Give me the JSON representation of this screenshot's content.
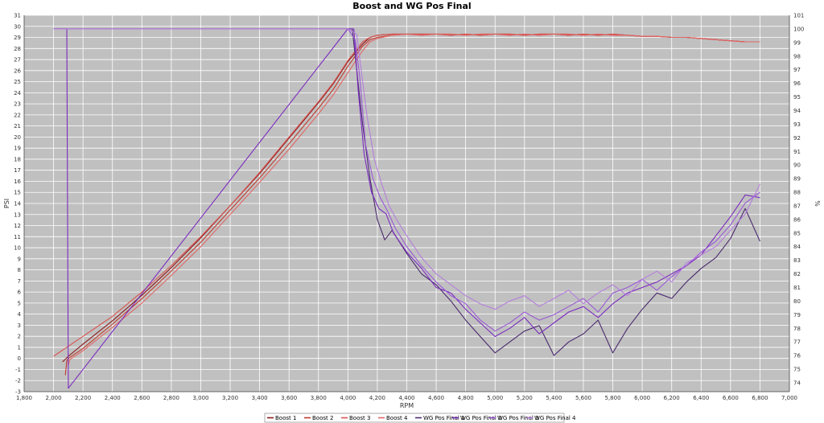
{
  "chart_data": {
    "type": "line",
    "title": "Boost and WG Pos Final",
    "xlabel": "RPM",
    "ylabel": "PSI",
    "y2label": "%",
    "xlim": [
      1800,
      7000
    ],
    "ylim": [
      -3,
      31
    ],
    "y2lim": [
      73.35,
      101
    ],
    "x_ticks": [
      "1,800",
      "2,000",
      "2,200",
      "2,400",
      "2,600",
      "2,800",
      "3,000",
      "3,200",
      "3,400",
      "3,600",
      "3,800",
      "4,000",
      "4,200",
      "4,400",
      "4,600",
      "4,800",
      "5,000",
      "5,200",
      "5,400",
      "5,600",
      "5,800",
      "6,000",
      "6,200",
      "6,400",
      "6,600",
      "6,800",
      "7,000"
    ],
    "y_ticks": [
      "-3",
      "-2",
      "-1",
      "0",
      "1",
      "2",
      "3",
      "4",
      "5",
      "6",
      "7",
      "8",
      "9",
      "10",
      "11",
      "12",
      "13",
      "14",
      "15",
      "16",
      "17",
      "18",
      "19",
      "20",
      "21",
      "22",
      "23",
      "24",
      "25",
      "26",
      "27",
      "28",
      "29",
      "30",
      "31"
    ],
    "y2_ticks": [
      "74",
      "75",
      "76",
      "77",
      "78",
      "79",
      "80",
      "81",
      "82",
      "83",
      "84",
      "85",
      "86",
      "87",
      "88",
      "89",
      "90",
      "91",
      "92",
      "93",
      "94",
      "95",
      "96",
      "97",
      "98",
      "99",
      "100",
      "101"
    ],
    "grid": true,
    "legend_position": "bottom",
    "series": [
      {
        "name": "Boost 1",
        "axis": "left",
        "color": "#8b1a1a",
        "x": [
          2060,
          2070,
          2100,
          2200,
          2400,
          2600,
          2800,
          3000,
          3200,
          3400,
          3600,
          3800,
          3900,
          4000,
          4100,
          4150,
          4200,
          4300,
          4400,
          4500,
          4600,
          4700,
          4800,
          4900,
          5000,
          5100,
          5200,
          5300,
          5400,
          5500,
          5600,
          5700,
          5800,
          5900,
          6000,
          6100,
          6200,
          6300,
          6400,
          6500,
          6600,
          6700,
          6800
        ],
        "values": [
          -0.3,
          -0.2,
          0.2,
          1.3,
          3.4,
          5.7,
          8.2,
          10.9,
          13.8,
          16.7,
          19.9,
          23.1,
          24.8,
          26.8,
          28.4,
          29.0,
          29.2,
          29.3,
          29.3,
          29.3,
          29.3,
          29.2,
          29.3,
          29.2,
          29.3,
          29.3,
          29.2,
          29.3,
          29.3,
          29.2,
          29.3,
          29.2,
          29.3,
          29.2,
          29.1,
          29.1,
          29.0,
          29.0,
          28.9,
          28.8,
          28.7,
          28.6,
          28.6
        ]
      },
      {
        "name": "Boost 2",
        "axis": "left",
        "color": "#c0392b",
        "x": [
          2080,
          2090,
          2100,
          2200,
          2400,
          2600,
          2800,
          3000,
          3200,
          3400,
          3600,
          3800,
          3900,
          4000,
          4100,
          4150,
          4200,
          4300,
          4400,
          4500,
          4600,
          4700,
          4800,
          4900,
          5000,
          5100,
          5200,
          5300,
          5400,
          5500,
          5600,
          5700,
          5800,
          5900,
          6000,
          6100,
          6200,
          6300,
          6400,
          6500,
          6600,
          6700,
          6800
        ],
        "values": [
          -1.5,
          -0.2,
          0.0,
          0.9,
          3.1,
          5.4,
          7.9,
          10.5,
          13.4,
          16.3,
          19.4,
          22.6,
          24.3,
          26.4,
          28.2,
          28.8,
          29.0,
          29.2,
          29.3,
          29.2,
          29.3,
          29.3,
          29.2,
          29.3,
          29.3,
          29.2,
          29.3,
          29.2,
          29.3,
          29.3,
          29.2,
          29.3,
          29.2,
          29.2,
          29.1,
          29.1,
          29.0,
          29.0,
          28.9,
          28.8,
          28.7,
          28.6,
          28.6
        ]
      },
      {
        "name": "Boost 3",
        "axis": "left",
        "color": "#d9534f",
        "x": [
          2000,
          2100,
          2200,
          2400,
          2600,
          2800,
          3000,
          3200,
          3400,
          3600,
          3800,
          3900,
          4000,
          4100,
          4150,
          4200,
          4300,
          4400,
          4500,
          4600,
          4700,
          4800,
          4900,
          5000,
          5100,
          5200,
          5300,
          5400,
          5500,
          5600,
          5700,
          5800,
          5900,
          6000,
          6100,
          6200,
          6300,
          6400,
          6500,
          6600,
          6700,
          6800
        ],
        "values": [
          0.2,
          1.1,
          2.0,
          3.8,
          6.0,
          8.4,
          11.0,
          13.8,
          16.8,
          20.0,
          23.2,
          24.9,
          26.9,
          28.6,
          29.0,
          29.2,
          29.3,
          29.3,
          29.3,
          29.3,
          29.2,
          29.3,
          29.2,
          29.3,
          29.3,
          29.2,
          29.3,
          29.3,
          29.2,
          29.3,
          29.2,
          29.3,
          29.2,
          29.1,
          29.1,
          29.0,
          29.0,
          28.9,
          28.8,
          28.7,
          28.6,
          28.6
        ]
      },
      {
        "name": "Boost 4",
        "axis": "left",
        "color": "#e06666",
        "x": [
          2100,
          2110,
          2200,
          2400,
          2600,
          2800,
          3000,
          3200,
          3400,
          3600,
          3800,
          3900,
          4000,
          4100,
          4150,
          4200,
          4300,
          4400,
          4500,
          4600,
          4700,
          4800,
          4900,
          5000,
          5100,
          5200,
          5300,
          5400,
          5500,
          5600,
          5700,
          5800,
          5900,
          6000,
          6100,
          6200,
          6300,
          6400,
          6500,
          6600,
          6700,
          6800
        ],
        "values": [
          -0.6,
          -0.1,
          0.7,
          2.8,
          5.0,
          7.5,
          10.1,
          13.0,
          15.9,
          18.9,
          22.1,
          23.8,
          25.8,
          27.8,
          28.6,
          28.9,
          29.2,
          29.3,
          29.2,
          29.3,
          29.3,
          29.2,
          29.3,
          29.3,
          29.2,
          29.3,
          29.2,
          29.3,
          29.3,
          29.2,
          29.3,
          29.2,
          29.2,
          29.1,
          29.1,
          29.0,
          29.0,
          28.9,
          28.8,
          28.7,
          28.6,
          28.6
        ]
      },
      {
        "name": "WG Pos Final 1",
        "axis": "right",
        "color": "#4a2a6e",
        "x": [
          2000,
          2100,
          4000,
          4030,
          4060,
          4100,
          4150,
          4200,
          4250,
          4300,
          4400,
          4500,
          4600,
          4700,
          4800,
          4900,
          5000,
          5100,
          5200,
          5300,
          5400,
          5500,
          5600,
          5700,
          5800,
          5900,
          6000,
          6100,
          6200,
          6300,
          6400,
          6500,
          6600,
          6700,
          6800
        ],
        "values": [
          100,
          100,
          100,
          100,
          97.0,
          93.0,
          89.0,
          86.0,
          84.5,
          85.2,
          83.5,
          82.0,
          81.2,
          80.0,
          78.6,
          77.4,
          76.2,
          77.0,
          77.8,
          78.2,
          76.0,
          77.0,
          77.6,
          78.6,
          76.2,
          78.0,
          79.4,
          80.6,
          80.2,
          81.4,
          82.4,
          83.2,
          84.6,
          86.8,
          84.4
        ]
      },
      {
        "name": "WG Pos Final 2",
        "axis": "right",
        "color": "#7b2cbf",
        "x": [
          2000,
          2090,
          2100,
          4000,
          4040,
          4070,
          4110,
          4160,
          4210,
          4260,
          4310,
          4400,
          4500,
          4600,
          4700,
          4800,
          4900,
          5000,
          5100,
          5200,
          5300,
          5400,
          5500,
          5600,
          5700,
          5800,
          5900,
          6000,
          6100,
          6200,
          6300,
          6400,
          6500,
          6600,
          6700,
          6800
        ],
        "values": [
          100,
          100,
          73.6,
          100,
          100,
          95.5,
          90.8,
          88.0,
          86.8,
          86.4,
          85.0,
          83.6,
          82.4,
          81.0,
          80.6,
          79.4,
          78.4,
          77.4,
          78.0,
          78.8,
          77.6,
          78.4,
          79.2,
          79.6,
          78.8,
          79.8,
          80.6,
          81.0,
          81.4,
          82.0,
          82.6,
          83.4,
          84.8,
          86.2,
          87.8,
          87.6
        ]
      },
      {
        "name": "WG Pos Final 3",
        "axis": "right",
        "color": "#9b59d6",
        "x": [
          2000,
          4000,
          4050,
          4080,
          4120,
          4170,
          4220,
          4270,
          4320,
          4400,
          4500,
          4600,
          4700,
          4800,
          4900,
          5000,
          5100,
          5200,
          5300,
          5400,
          5500,
          5600,
          5700,
          5800,
          5900,
          6000,
          6100,
          6200,
          6300,
          6400,
          6500,
          6600,
          6700,
          6800
        ],
        "values": [
          100,
          100,
          99.2,
          96.5,
          91.5,
          89.0,
          87.6,
          86.6,
          85.4,
          84.0,
          82.6,
          81.4,
          80.4,
          79.8,
          78.6,
          77.8,
          78.4,
          79.2,
          78.6,
          79.0,
          79.6,
          80.2,
          79.2,
          80.6,
          81.0,
          81.6,
          80.8,
          81.8,
          82.6,
          83.6,
          84.4,
          85.6,
          87.2,
          88.0
        ]
      },
      {
        "name": "WG Pos Final 4",
        "axis": "right",
        "color": "#b57edc",
        "x": [
          2000,
          4000,
          4060,
          4090,
          4130,
          4180,
          4230,
          4280,
          4330,
          4400,
          4500,
          4600,
          4700,
          4800,
          4900,
          5000,
          5100,
          5200,
          5300,
          5400,
          5500,
          5600,
          5700,
          5800,
          5900,
          6000,
          6100,
          6200,
          6300,
          6400,
          6500,
          6600,
          6700,
          6800
        ],
        "values": [
          100,
          100,
          99.6,
          97.0,
          93.6,
          90.4,
          88.6,
          87.0,
          86.0,
          84.8,
          83.2,
          82.0,
          81.2,
          80.4,
          79.8,
          79.4,
          80.0,
          80.4,
          79.6,
          80.2,
          80.8,
          79.8,
          80.6,
          81.2,
          80.4,
          81.6,
          82.2,
          81.4,
          82.8,
          83.4,
          84.0,
          85.2,
          86.4,
          88.6
        ]
      }
    ]
  }
}
